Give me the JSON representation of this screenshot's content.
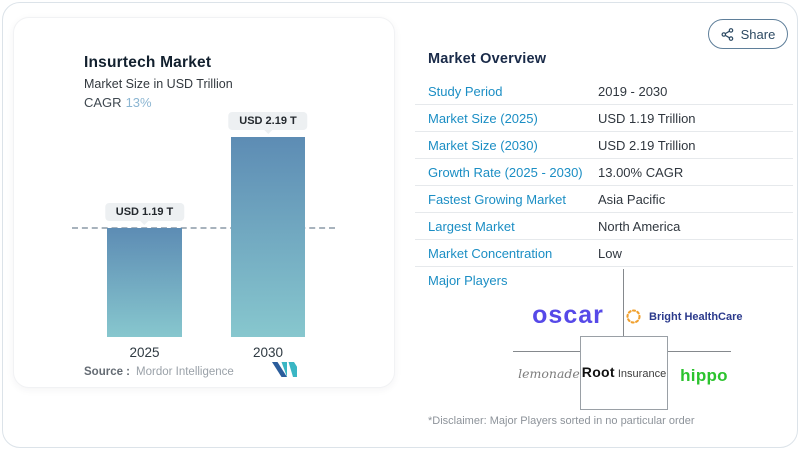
{
  "window": {
    "share_label": "Share"
  },
  "chart_panel": {
    "title": "Insurtech Market",
    "subtitle": "Market Size in USD Trillion",
    "cagr_label": "CAGR",
    "cagr_value": "13%",
    "source_label": "Source :",
    "source_value": "Mordor Intelligence"
  },
  "chart_data": {
    "type": "bar",
    "categories": [
      "2025",
      "2030"
    ],
    "values": [
      1.19,
      2.19
    ],
    "value_labels": [
      "USD 1.19 T",
      "USD 2.19 T"
    ],
    "unit": "USD Trillion",
    "title": "Insurtech Market",
    "ylabel": "Market Size in USD Trillion",
    "cagr_percent": 13,
    "reference_line_value": 1.19,
    "legend": "none",
    "grid": "off",
    "bar_color_top": "#5d8cb4",
    "bar_color_bottom": "#87c7ce"
  },
  "overview": {
    "heading": "Market Overview",
    "rows": [
      {
        "label": "Study Period",
        "value": "2019 - 2030"
      },
      {
        "label": "Market Size (2025)",
        "value": "USD 1.19 Trillion"
      },
      {
        "label": "Market Size (2030)",
        "value": "USD 2.19 Trillion"
      },
      {
        "label": "Growth Rate (2025 - 2030)",
        "value": "13.00% CAGR"
      },
      {
        "label": "Fastest Growing Market",
        "value": "Asia Pacific"
      },
      {
        "label": "Largest Market",
        "value": "North America"
      },
      {
        "label": "Market Concentration",
        "value": "Low"
      }
    ],
    "major_players": {
      "label": "Major Players",
      "players": [
        {
          "name": "Oscar",
          "display": "oscar",
          "color": "#5649e8"
        },
        {
          "name": "Bright HealthCare",
          "display": "Bright HealthCare",
          "color": "#2b3a8c"
        },
        {
          "name": "Lemonade",
          "display": "lemonade",
          "color": "#7d7d7d"
        },
        {
          "name": "Root Insurance",
          "display_bold": "Root",
          "display_rest": "Insurance",
          "color": "#101010"
        },
        {
          "name": "Hippo",
          "display": "hippo",
          "color": "#2cc32f"
        }
      ]
    },
    "disclaimer": "*Disclaimer: Major Players sorted in no particular order"
  },
  "colors": {
    "accent_blue": "#1b8ec4",
    "heading_navy": "#1a2b49",
    "value_text": "#30373f",
    "cagr_value_blue": "#8cb6d2",
    "bar_top": "#5d8cb4",
    "bar_bottom": "#87c7ce"
  }
}
